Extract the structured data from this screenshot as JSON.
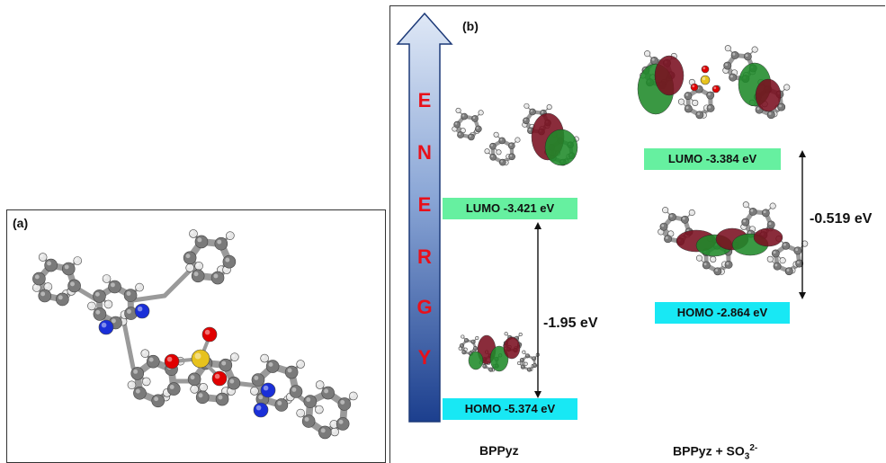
{
  "panel_a": {
    "label": "(a)"
  },
  "panel_b": {
    "label": "(b)",
    "energy_letters": [
      "E",
      "N",
      "E",
      "R",
      "G",
      "Y"
    ],
    "left": {
      "lumo": "LUMO -3.421 eV",
      "homo": "HOMO -5.374 eV",
      "gap": "-1.95 eV",
      "caption": "BPPyz"
    },
    "right": {
      "lumo": "LUMO -3.384 eV",
      "homo": "HOMO -2.864 eV",
      "gap": "-0.519 eV",
      "caption_main": "BPPyz + SO",
      "caption_sub": "3",
      "caption_sup": "2-"
    }
  },
  "colors": {
    "carbon": "#7a7a7a",
    "hydrogen": "#e6e6e6",
    "nitrogen": "#1a2fd8",
    "oxygen": "#e00000",
    "sulfur": "#e7c21d",
    "orbital_green": "#1f8a2a",
    "orbital_red": "#7a1020",
    "lumo_box": "#66f0a0",
    "homo_box": "#18e8f4",
    "energy_text": "#e8101a"
  }
}
